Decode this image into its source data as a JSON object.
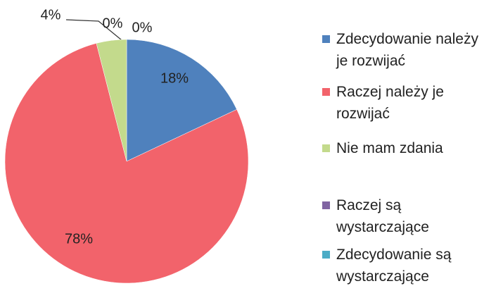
{
  "chart_data": {
    "type": "pie",
    "categories": [
      "Zdecydowanie należy je rozwijać",
      "Raczej należy je rozwijać",
      "Nie mam zdania",
      "Raczej są wystarczające",
      "Zdecydowanie są wystarczające"
    ],
    "values": [
      18,
      78,
      4,
      0,
      0
    ],
    "value_labels": [
      "18%",
      "78%",
      "4%",
      "0%",
      "0%"
    ],
    "colors": [
      "#4f81bd",
      "#f2636b",
      "#c3da8c",
      "#8064a2",
      "#4bacc6"
    ]
  }
}
